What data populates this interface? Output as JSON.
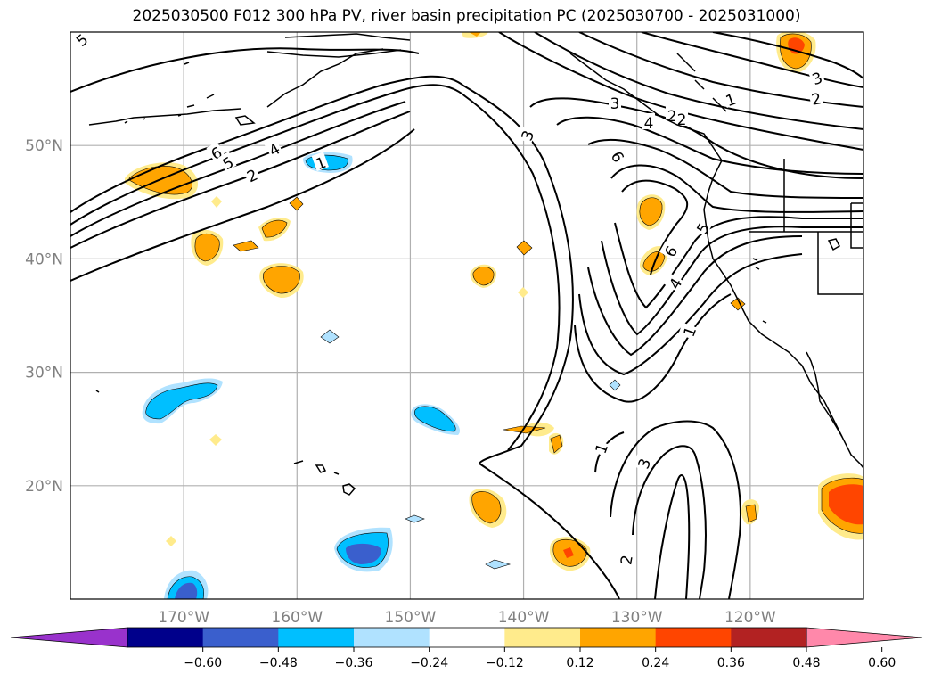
{
  "title": "2025030500 F012 300 hPa PV, river basin precipitation PC (2025030700 - 2025031000)",
  "map": {
    "lon_range": [
      -180,
      -110
    ],
    "lat_range": [
      10,
      60
    ],
    "lat_labels": [
      "20°N",
      "30°N",
      "40°N",
      "50°N"
    ],
    "lat_values": [
      20,
      30,
      40,
      50
    ],
    "lon_labels": [
      "170°W",
      "160°W",
      "150°W",
      "140°W",
      "130°W",
      "120°W"
    ],
    "lon_values": [
      -170,
      -160,
      -150,
      -140,
      -130,
      -120
    ],
    "contour_labels": [
      "5",
      "6",
      "5",
      "4",
      "2",
      "1",
      "3",
      "6",
      "4",
      "2",
      "1",
      "3",
      "2",
      "6",
      "5",
      "4",
      "1",
      "3",
      "2",
      "1",
      "3",
      "2"
    ]
  },
  "colorbar": {
    "ticks": [
      "−0.60",
      "−0.48",
      "−0.36",
      "−0.24",
      "−0.12",
      "0.12",
      "0.24",
      "0.36",
      "0.48",
      "0.60"
    ],
    "colors": [
      "#9932cc",
      "#00008b",
      "#3a5fcd",
      "#00bfff",
      "#b0e2ff",
      "#ffffff",
      "#ffeb8c",
      "#ffa500",
      "#ff4500",
      "#b22222",
      "#ff88aa"
    ]
  }
}
